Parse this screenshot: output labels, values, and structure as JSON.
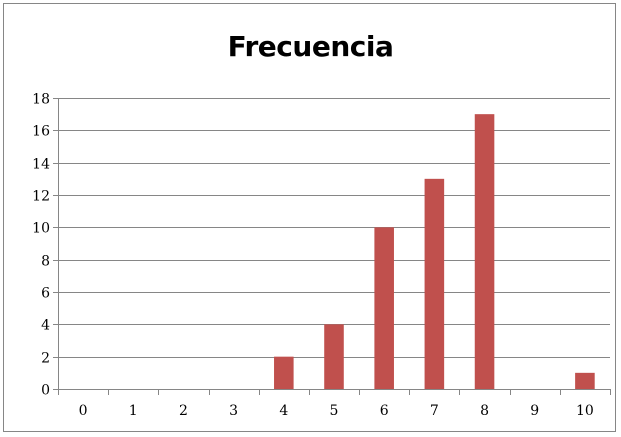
{
  "chart_data": {
    "type": "bar",
    "title": "Frecuencia",
    "categories": [
      "0",
      "1",
      "2",
      "3",
      "4",
      "5",
      "6",
      "7",
      "8",
      "9",
      "10"
    ],
    "values": [
      0,
      0,
      0,
      0,
      2,
      4,
      10,
      13,
      17,
      0,
      1
    ],
    "ylim": [
      0,
      18
    ],
    "yticks": [
      0,
      2,
      4,
      6,
      8,
      10,
      12,
      14,
      16,
      18
    ],
    "xlabel": "",
    "ylabel": "",
    "grid": true,
    "legend": "none",
    "bar_color": "#c0504d",
    "grid_color": "#868686"
  }
}
